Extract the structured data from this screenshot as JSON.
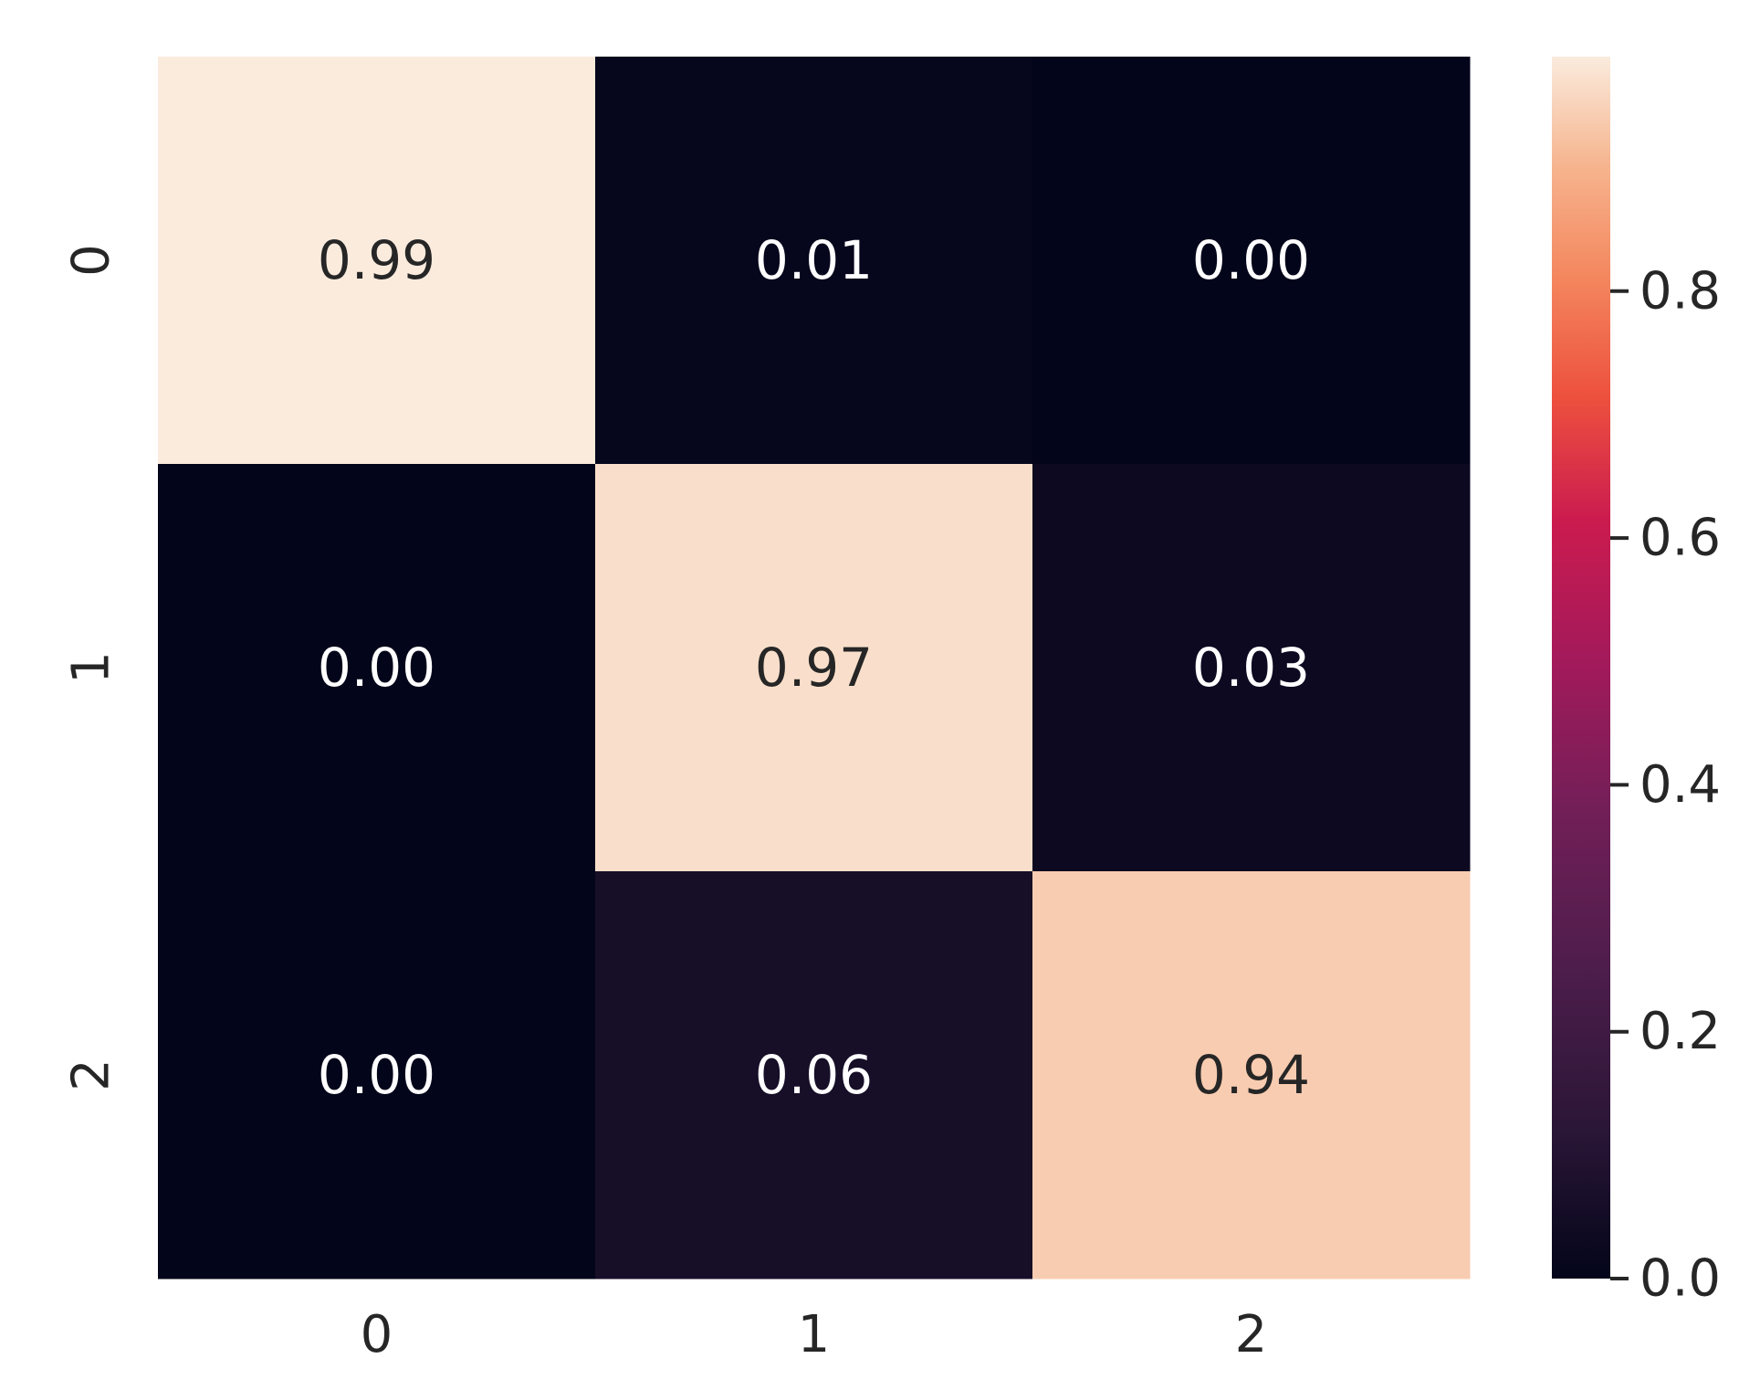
{
  "chart_data": {
    "type": "heatmap",
    "title": "",
    "xlabel": "",
    "ylabel": "",
    "x_categories": [
      "0",
      "1",
      "2"
    ],
    "y_categories": [
      "0",
      "1",
      "2"
    ],
    "values": [
      [
        0.99,
        0.01,
        0.0
      ],
      [
        0.0,
        0.97,
        0.03
      ],
      [
        0.0,
        0.06,
        0.94
      ]
    ],
    "value_format": "0.00",
    "colormap": "rocket",
    "colorbar": {
      "range": [
        0.0,
        0.99
      ],
      "ticks": [
        0.0,
        0.2,
        0.4,
        0.6,
        0.8
      ],
      "tick_labels": [
        "0.0",
        "0.2",
        "0.4",
        "0.6",
        "0.8"
      ],
      "placement": "right"
    },
    "annot_colors": {
      "light_cell": "#262626",
      "dark_cell": "#ffffff"
    }
  }
}
